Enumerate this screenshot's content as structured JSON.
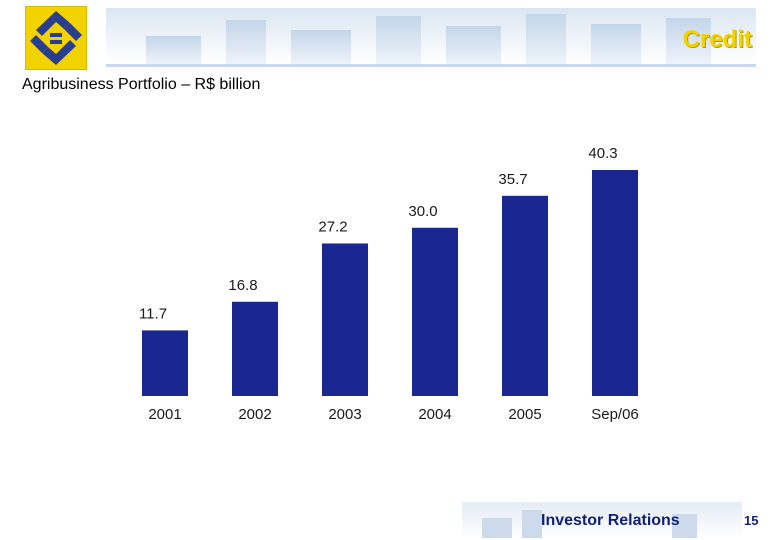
{
  "header": {
    "section_title": "Credit"
  },
  "subtitle": "Agribusiness Portfolio – R$ billion",
  "chart_data": {
    "type": "bar",
    "categories": [
      "2001",
      "2002",
      "2003",
      "2004",
      "2005",
      "Sep/06"
    ],
    "values": [
      11.7,
      16.8,
      27.2,
      30.0,
      35.7,
      40.3
    ],
    "value_labels": [
      "11.7",
      "16.8",
      "27.2",
      "30.0",
      "35.7",
      "40.3"
    ],
    "title": "Agribusiness Portfolio – R$ billion",
    "xlabel": "",
    "ylabel": "",
    "ylim": [
      0,
      40.3
    ],
    "grid": false,
    "bar_color": "#1a2790"
  },
  "footer": {
    "label": "Investor Relations",
    "page_number": "15"
  },
  "colors": {
    "brand_yellow": "#f2d300",
    "brand_blue": "#1a2790"
  }
}
